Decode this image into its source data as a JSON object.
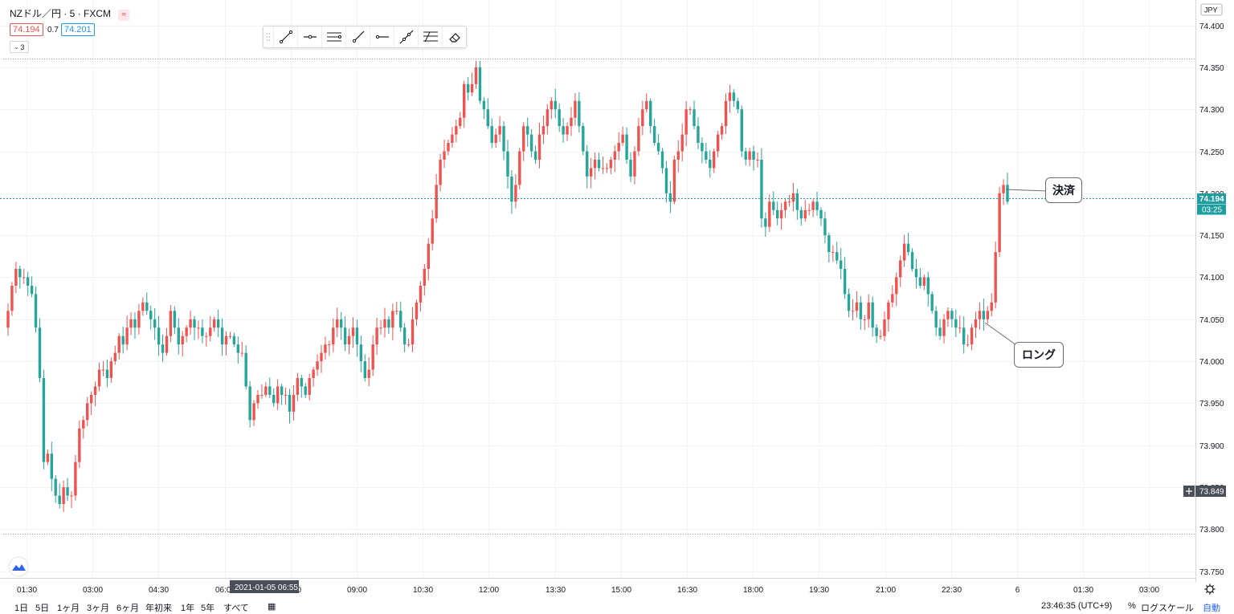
{
  "symbol": {
    "title": "NZドル／円 · 5 · FXCM",
    "bid": "74.194",
    "spread": "0.7",
    "ask": "74.201",
    "indicator_count": "3",
    "currency": "JPY"
  },
  "current_price": {
    "value": "74.194",
    "countdown": "03:25",
    "price": 74.194
  },
  "crosshair_price": {
    "value": "73.849"
  },
  "crosshair_time": {
    "label": "2021-01-05 06:55"
  },
  "annotations": {
    "exit_label": "決済",
    "entry_label": "ロング"
  },
  "bottom_bar": {
    "ranges": [
      "1日",
      "5日",
      "1ヶ月",
      "3ヶ月",
      "6ヶ月",
      "年初来",
      "1年",
      "5年",
      "すべて"
    ],
    "clock": "23:46:35 (UTC+9)",
    "percent": "%",
    "log_scale": "ログスケール",
    "auto": "自動"
  },
  "colors": {
    "up": "#ef5350",
    "down": "#26a69a",
    "grid": "#f0f3fa",
    "line": "#1e9ea0"
  },
  "chart_data": {
    "type": "candlestick",
    "x_tick_labels": [
      "01:30",
      "03:00",
      "04:30",
      "06:00",
      "07:30",
      "09:00",
      "10:30",
      "12:00",
      "13:30",
      "15:00",
      "16:30",
      "18:00",
      "19:30",
      "21:00",
      "22:30",
      "6",
      "01:30",
      "03:00"
    ],
    "y_tick_labels": [
      "73.750",
      "73.800",
      "73.850",
      "73.900",
      "73.950",
      "74.000",
      "74.050",
      "74.100",
      "74.150",
      "74.200",
      "74.250",
      "74.300",
      "74.350",
      "74.400"
    ],
    "ylim": [
      73.743,
      74.412
    ],
    "y_ticks": [
      73.75,
      73.8,
      73.85,
      73.9,
      73.95,
      74.0,
      74.05,
      74.1,
      74.15,
      74.2,
      74.25,
      74.3,
      74.35,
      74.4
    ],
    "candles_close_path": [
      74.06,
      74.09,
      74.11,
      74.1,
      74.1,
      74.09,
      74.08,
      74.04,
      73.98,
      73.88,
      73.89,
      73.86,
      73.84,
      73.83,
      73.85,
      73.84,
      73.84,
      73.88,
      73.92,
      73.93,
      73.95,
      73.96,
      73.97,
      73.99,
      73.99,
      73.98,
      74.0,
      74.01,
      74.03,
      74.02,
      74.04,
      74.05,
      74.04,
      74.06,
      74.07,
      74.06,
      74.05,
      74.04,
      74.02,
      74.01,
      74.03,
      74.06,
      74.04,
      74.02,
      74.03,
      74.04,
      74.05,
      74.04,
      74.04,
      74.03,
      74.03,
      74.04,
      74.05,
      74.04,
      74.02,
      74.03,
      74.03,
      74.02,
      74.01,
      74.01,
      73.97,
      73.93,
      73.95,
      73.96,
      73.96,
      73.97,
      73.96,
      73.95,
      73.97,
      73.96,
      73.96,
      73.94,
      73.96,
      73.98,
      73.97,
      73.96,
      73.98,
      73.99,
      74.0,
      74.01,
      74.02,
      74.02,
      74.04,
      74.05,
      74.04,
      74.02,
      74.03,
      74.04,
      74.02,
      74.0,
      73.98,
      73.99,
      74.02,
      74.04,
      74.04,
      74.05,
      74.04,
      74.06,
      74.06,
      74.04,
      74.02,
      74.02,
      74.05,
      74.07,
      74.09,
      74.11,
      74.14,
      74.17,
      74.21,
      74.24,
      74.25,
      74.26,
      74.27,
      74.28,
      74.29,
      74.33,
      74.32,
      74.33,
      74.35,
      74.31,
      74.3,
      74.28,
      74.26,
      74.27,
      74.28,
      74.25,
      74.22,
      74.19,
      74.21,
      74.25,
      74.28,
      74.27,
      74.25,
      74.24,
      74.27,
      74.28,
      74.3,
      74.31,
      74.3,
      74.28,
      74.27,
      74.28,
      74.29,
      74.31,
      74.28,
      74.25,
      74.22,
      74.23,
      74.24,
      74.23,
      74.23,
      74.23,
      74.24,
      74.25,
      74.26,
      74.27,
      74.24,
      74.22,
      74.25,
      74.28,
      74.3,
      74.31,
      74.28,
      74.26,
      74.25,
      74.23,
      74.2,
      74.19,
      74.24,
      74.25,
      74.27,
      74.3,
      74.3,
      74.28,
      74.26,
      74.25,
      74.24,
      74.23,
      74.25,
      74.27,
      74.28,
      74.31,
      74.32,
      74.31,
      74.3,
      74.25,
      74.24,
      74.25,
      74.24,
      74.24,
      74.17,
      74.16,
      74.19,
      74.18,
      74.17,
      74.18,
      74.19,
      74.19,
      74.2,
      74.18,
      74.17,
      74.18,
      74.18,
      74.19,
      74.18,
      74.17,
      74.15,
      74.13,
      74.13,
      74.12,
      74.11,
      74.08,
      74.06,
      74.06,
      74.07,
      74.05,
      74.05,
      74.07,
      74.04,
      74.03,
      74.03,
      74.05,
      74.07,
      74.08,
      74.1,
      74.12,
      74.14,
      74.13,
      74.11,
      74.1,
      74.09,
      74.1,
      74.08,
      74.06,
      74.04,
      74.03,
      74.05,
      74.06,
      74.05,
      74.04,
      74.04,
      74.02,
      74.02,
      74.04,
      74.05,
      74.06,
      74.05,
      74.06,
      74.07,
      74.13,
      74.2,
      74.21,
      74.19
    ]
  }
}
